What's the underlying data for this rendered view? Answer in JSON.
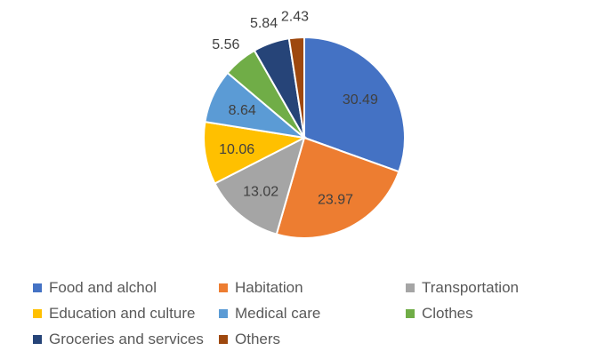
{
  "chart_data": {
    "type": "pie",
    "title": "",
    "start": "12 o'clock, clockwise",
    "legend_position": "bottom",
    "slices": [
      {
        "label": "Food and alchol",
        "value": 30.49,
        "color": "#4472C4",
        "label_position": "inside"
      },
      {
        "label": "Habitation",
        "value": 23.97,
        "color": "#ED7D31",
        "label_position": "inside"
      },
      {
        "label": "Transportation",
        "value": 13.02,
        "color": "#A5A5A5",
        "label_position": "inside"
      },
      {
        "label": "Education and culture",
        "value": 10.06,
        "color": "#FFC000",
        "label_position": "inside"
      },
      {
        "label": "Medical care",
        "value": 8.64,
        "color": "#5B9BD5",
        "label_position": "inside"
      },
      {
        "label": "Clothes",
        "value": 5.56,
        "color": "#70AD47",
        "label_position": "outside"
      },
      {
        "label": "Groceries and services",
        "value": 5.84,
        "color": "#264478",
        "label_position": "outside"
      },
      {
        "label": "Others",
        "value": 2.43,
        "color": "#9E480E",
        "label_position": "outside"
      }
    ]
  }
}
